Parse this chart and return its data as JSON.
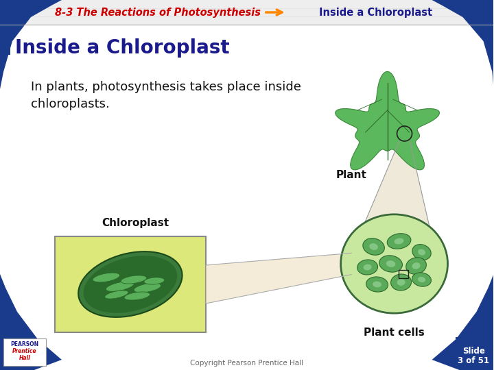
{
  "title_left": "8-3 The Reactions of Photosynthesis",
  "title_right": "Inside a Chloroplast",
  "header_text_left_color": "#cc0000",
  "header_text_right_color": "#1a1a8c",
  "header_arrow_color": "#ff8800",
  "slide_title": "Inside a Chloroplast",
  "slide_title_color": "#1a1a8c",
  "body_text_line1": "In plants, photosynthesis takes place inside",
  "body_text_line2": "chloroplasts.",
  "body_text_color": "#111111",
  "label_plant": "Plant",
  "label_chloroplast": "Chloroplast",
  "label_plant_cells": "Plant cells",
  "label_color": "#111111",
  "bg_color": "#ffffff",
  "blue_color": "#1a3a8c",
  "footer_text": "Copyright Pearson Prentice Hall",
  "footer_color": "#666666",
  "slide_num_line1": "Slide",
  "slide_num_line2": "3 of 51",
  "slide_num_color": "#ffffff",
  "slide_num_bg": "#1a3a8c",
  "chloroplast_box_color": "#dde87a",
  "chloroplast_box_border": "#888888",
  "header_bg": "#e8e8e8",
  "header_stripe_color": "#cccccc"
}
